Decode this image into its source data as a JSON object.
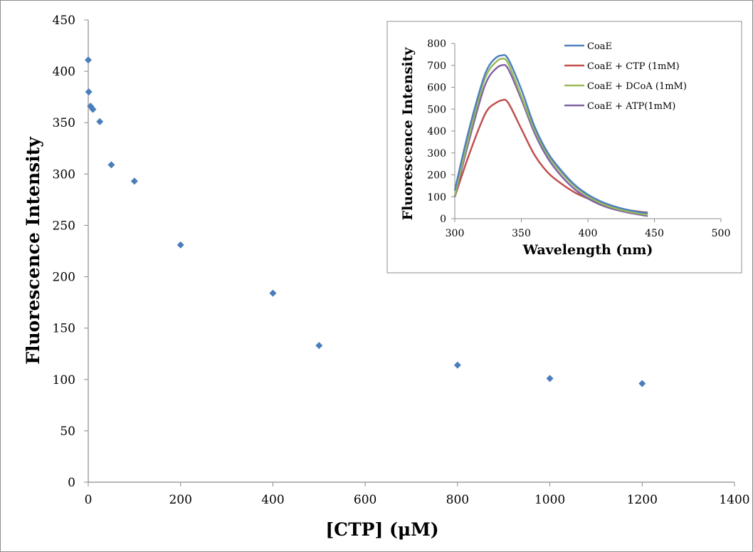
{
  "chart_data": [
    {
      "type": "scatter",
      "title": "",
      "xlabel": "[CTP] (μM)",
      "ylabel": "Fluorescence Intensity",
      "xlim": [
        0,
        1400
      ],
      "ylim": [
        0,
        450
      ],
      "xticks": [
        0,
        200,
        400,
        600,
        800,
        1000,
        1200,
        1400
      ],
      "yticks": [
        0,
        50,
        100,
        150,
        200,
        250,
        300,
        350,
        400,
        450
      ],
      "grid": false,
      "marker_color": "#4a7ebb",
      "series": [
        {
          "x": [
            0,
            1,
            5,
            10,
            25,
            50,
            100,
            200,
            400,
            500,
            800,
            1000,
            1200
          ],
          "y": [
            411,
            380,
            366,
            363,
            351,
            309,
            293,
            231,
            184,
            133,
            114,
            101,
            96
          ]
        }
      ]
    },
    {
      "type": "line",
      "title": "",
      "xlabel": "Wavelength (nm)",
      "ylabel": "Fluorescence Intensity",
      "xlim": [
        300,
        500
      ],
      "ylim": [
        0,
        800
      ],
      "xticks": [
        300,
        350,
        400,
        450,
        500
      ],
      "yticks": [
        0,
        100,
        200,
        300,
        400,
        500,
        600,
        700,
        800
      ],
      "grid": false,
      "legend": "top-right",
      "x": [
        300,
        310,
        320,
        325,
        330,
        335,
        340,
        350,
        360,
        370,
        380,
        390,
        400,
        410,
        420,
        430,
        440,
        445
      ],
      "series": [
        {
          "name": "CoaE",
          "color": "#4f81bd",
          "values": [
            130,
            390,
            610,
            690,
            730,
            745,
            730,
            590,
            420,
            300,
            220,
            155,
            110,
            78,
            56,
            40,
            29,
            26
          ]
        },
        {
          "name": "CoaE + CTP (1mM)",
          "color": "#c0504d",
          "values": [
            100,
            280,
            440,
            500,
            525,
            540,
            530,
            410,
            290,
            210,
            160,
            120,
            92,
            70,
            52,
            40,
            31,
            28
          ]
        },
        {
          "name": "CoaE + DCoA (1mM)",
          "color": "#9bbb59",
          "values": [
            105,
            360,
            590,
            670,
            710,
            730,
            710,
            560,
            405,
            290,
            210,
            148,
            102,
            70,
            48,
            33,
            22,
            18
          ]
        },
        {
          "name": "CoaE + ATP(1mM)",
          "color": "#8064a2",
          "values": [
            100,
            340,
            560,
            640,
            680,
            700,
            685,
            545,
            390,
            275,
            195,
            135,
            92,
            62,
            42,
            28,
            17,
            12
          ]
        }
      ]
    }
  ]
}
